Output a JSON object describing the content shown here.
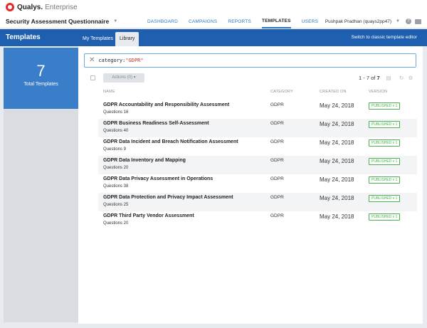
{
  "brand": {
    "name": "Qualys.",
    "edition": "Enterprise"
  },
  "app": {
    "title": "Security Assessment Questionnaire"
  },
  "nav": [
    {
      "label": "DASHBOARD"
    },
    {
      "label": "CAMPAIGNS"
    },
    {
      "label": "REPORTS"
    },
    {
      "label": "TEMPLATES"
    },
    {
      "label": "USERS"
    }
  ],
  "user": {
    "name": "Pushpak Pradhan (quays2pp47)"
  },
  "module": {
    "title": "Templates",
    "tabs": [
      {
        "label": "My Templates"
      },
      {
        "label": "Library"
      }
    ],
    "classic_link": "Switch to classic template editor"
  },
  "summary": {
    "count": "7",
    "label": "Total Templates"
  },
  "search": {
    "key": "category:",
    "value": "\"GDPR\""
  },
  "toolbar": {
    "actions_label": "Actions (0) ▾",
    "range": "1 - 7 of",
    "total": "7"
  },
  "columns": {
    "name": "NAME",
    "category": "CATEGORY",
    "created": "CREATED ON",
    "version": "VERSION"
  },
  "rows": [
    {
      "name": "GDPR Accountability and Responsibility Assessment",
      "questions": "Questions 16",
      "category": "GDPR",
      "created": "May 24, 2018",
      "version": "PUBLISHED v 1"
    },
    {
      "name": "GDPR Business Readiness Self-Assessment",
      "questions": "Questions 40",
      "category": "GDPR",
      "created": "May 24, 2018",
      "version": "PUBLISHED v 1"
    },
    {
      "name": "GDPR Data Incident and Breach Notification Assessment",
      "questions": "Questions 9",
      "category": "GDPR",
      "created": "May 24, 2018",
      "version": "PUBLISHED v 1"
    },
    {
      "name": "GDPR Data Inventory and Mapping",
      "questions": "Questions 20",
      "category": "GDPR",
      "created": "May 24, 2018",
      "version": "PUBLISHED v 1"
    },
    {
      "name": "GDPR Data Privacy Assessment in Operations",
      "questions": "Questions 38",
      "category": "GDPR",
      "created": "May 24, 2018",
      "version": "PUBLISHED v 1"
    },
    {
      "name": "GDPR Data Protection and Privacy Impact Assessment",
      "questions": "Questions 25",
      "category": "GDPR",
      "created": "May 24, 2018",
      "version": "PUBLISHED v 1"
    },
    {
      "name": "GDPR Third Party Vendor Assessment",
      "questions": "Questions 20",
      "category": "GDPR",
      "created": "May 24, 2018",
      "version": "PUBLISHED v 1"
    }
  ],
  "icons": {
    "logo": "qualys-logo-icon",
    "app_caret": "chevron-down-icon",
    "help": "help-icon",
    "mail": "mail-icon",
    "clear": "close-icon",
    "export": "export-icon",
    "refresh": "refresh-icon",
    "settings": "gear-icon"
  },
  "colors": {
    "primary": "#1f5fb0",
    "summary": "#3a7dc9",
    "published": "#4caf50",
    "filter_value": "#c0392b"
  }
}
